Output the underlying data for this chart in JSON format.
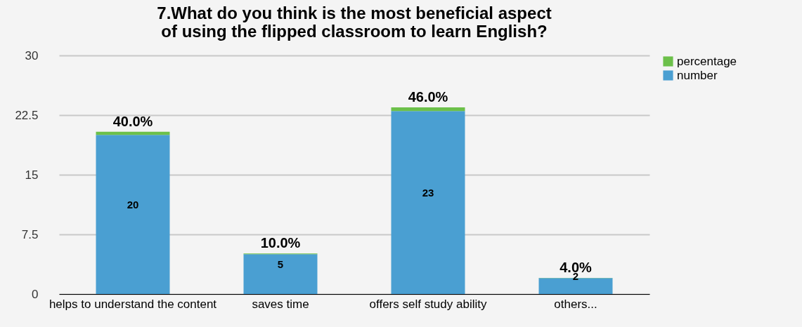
{
  "chart_data": {
    "type": "bar",
    "title": "7.What do you think is the most beneficial aspect of using the flipped classroom to learn English?",
    "categories": [
      "helps to understand the content",
      "saves time",
      "offers self study ability",
      "others..."
    ],
    "series": [
      {
        "name": "number",
        "color": "#4a9fd2",
        "values": [
          20,
          5,
          23,
          2
        ],
        "value_labels": [
          "20",
          "5",
          "23",
          "2"
        ]
      },
      {
        "name": "percentage",
        "color": "#6cc04a",
        "values": [
          0.4,
          0.1,
          0.46,
          0.04
        ],
        "value_labels": [
          "40.0%",
          "10.0%",
          "46.0%",
          "4.0%"
        ]
      }
    ],
    "stacked": true,
    "ylim": [
      0,
      30
    ],
    "yticks": [
      0,
      7.5,
      15,
      22.5,
      30
    ],
    "grid": "y",
    "legend": "right"
  }
}
